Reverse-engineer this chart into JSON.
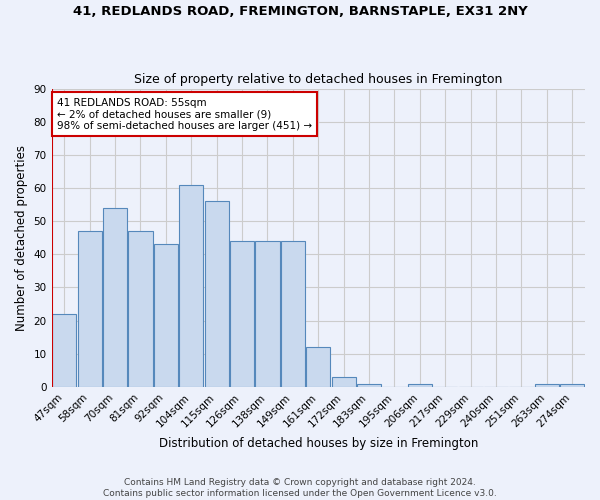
{
  "title": "41, REDLANDS ROAD, FREMINGTON, BARNSTAPLE, EX31 2NY",
  "subtitle": "Size of property relative to detached houses in Fremington",
  "xlabel": "Distribution of detached houses by size in Fremington",
  "ylabel": "Number of detached properties",
  "bar_labels": [
    "47sqm",
    "58sqm",
    "70sqm",
    "81sqm",
    "92sqm",
    "104sqm",
    "115sqm",
    "126sqm",
    "138sqm",
    "149sqm",
    "161sqm",
    "172sqm",
    "183sqm",
    "195sqm",
    "206sqm",
    "217sqm",
    "229sqm",
    "240sqm",
    "251sqm",
    "263sqm",
    "274sqm"
  ],
  "bar_values": [
    22,
    47,
    54,
    47,
    43,
    61,
    56,
    44,
    44,
    44,
    12,
    3,
    1,
    0,
    1,
    0,
    0,
    0,
    0,
    1,
    1
  ],
  "bar_color": "#c9d9ee",
  "bar_edge_color": "#5588bb",
  "annotation_text": "41 REDLANDS ROAD: 55sqm\n← 2% of detached houses are smaller (9)\n98% of semi-detached houses are larger (451) →",
  "annotation_box_color": "#ffffff",
  "annotation_box_edge_color": "#cc0000",
  "vline_color": "#cc0000",
  "grid_color": "#cccccc",
  "background_color": "#edf1fb",
  "footer": "Contains HM Land Registry data © Crown copyright and database right 2024.\nContains public sector information licensed under the Open Government Licence v3.0.",
  "ylim": [
    0,
    90
  ],
  "yticks": [
    0,
    10,
    20,
    30,
    40,
    50,
    60,
    70,
    80,
    90
  ]
}
